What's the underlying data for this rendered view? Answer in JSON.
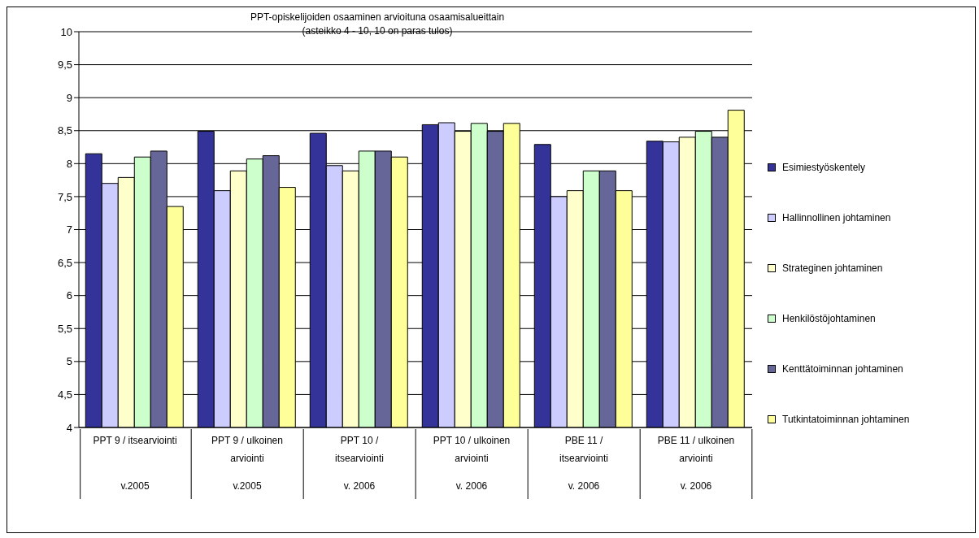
{
  "chart_data": {
    "type": "bar",
    "title": "PPT-opiskelijoiden osaaminen arvioituna osaamisalueittain",
    "subtitle": "(asteikko 4 - 10, 10 on paras tulos)",
    "categories": [
      "PPT 9 / itsearviointi",
      "PPT 9 / ulkoinen arviointi",
      "PPT 10 / itsearviointi",
      "PPT 10 / ulkoinen arviointi",
      "PBE 11 / itsearviointi",
      "PBE 11 / ulkoinen arviointi"
    ],
    "series": [
      {
        "name": "Esimiestyöskentely",
        "color": "#333399",
        "values": [
          8.15,
          8.49,
          8.46,
          8.59,
          8.29,
          8.34
        ]
      },
      {
        "name": "Hallinnollinen johtaminen",
        "color": "#ccccff",
        "values": [
          7.7,
          7.59,
          7.97,
          8.62,
          7.5,
          8.33
        ]
      },
      {
        "name": "Strateginen johtaminen",
        "color": "#ffffcc",
        "values": [
          7.79,
          7.89,
          7.89,
          8.49,
          7.59,
          8.4
        ]
      },
      {
        "name": "Henkilöstöjohtaminen",
        "color": "#ccffcc",
        "values": [
          8.1,
          8.07,
          8.19,
          8.61,
          7.89,
          8.49
        ]
      },
      {
        "name": "Kenttätoiminnan johtaminen",
        "color": "#666699",
        "values": [
          8.19,
          8.12,
          8.19,
          8.49,
          7.89,
          8.4
        ]
      },
      {
        "name": "Tutkintatoiminnan johtaminen",
        "color": "#ffff99",
        "values": [
          7.35,
          7.64,
          8.1,
          8.61,
          7.59,
          8.81
        ]
      }
    ],
    "annotations": [
      "v.2005",
      "v.2005",
      "v. 2006",
      "v. 2006",
      "v. 2006",
      "v. 2006"
    ],
    "ylim": [
      4,
      10
    ],
    "yticks": [
      4,
      {
        "value": 4.5,
        "label": "4,5"
      },
      5,
      {
        "value": 5.5,
        "label": "5,5"
      },
      6,
      {
        "value": 6.5,
        "label": "6,5"
      },
      7,
      {
        "value": 7.5,
        "label": "7,5"
      },
      8,
      {
        "value": 8.5,
        "label": "8,5"
      },
      9,
      {
        "value": 9.5,
        "label": "9,5"
      },
      10
    ],
    "grid": "y",
    "legend": "right"
  }
}
